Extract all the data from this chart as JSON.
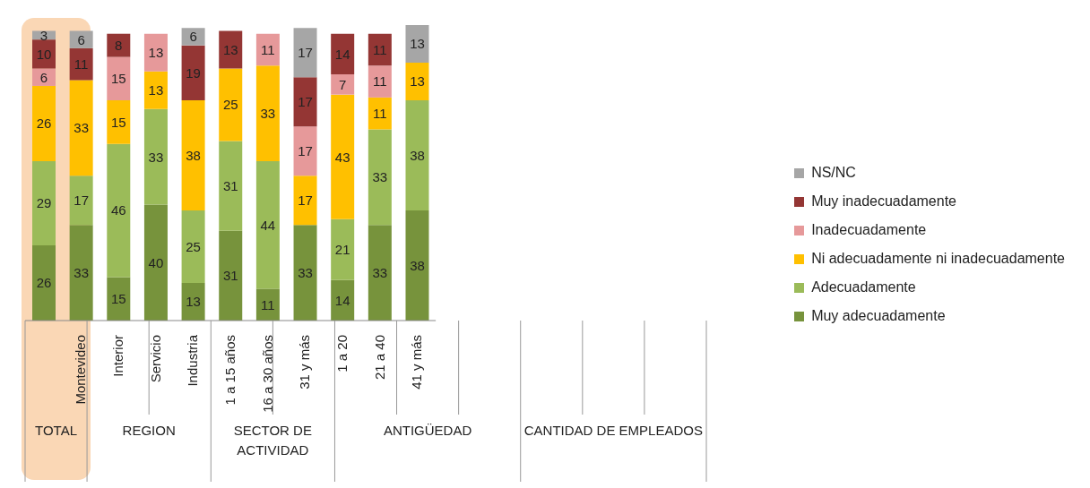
{
  "chart_data": {
    "type": "bar",
    "stacked": true,
    "data_labels": true,
    "legend": "right",
    "categories": [
      null,
      "Montevideo",
      "Interior",
      "Servicio",
      "Industria",
      "1 a 15 años",
      "16 a 30 años",
      "31 y más",
      "1 a 20",
      "21 a 40",
      "41 y más"
    ],
    "series": [
      {
        "name": "Muy adecuadamente",
        "color": "#77933c",
        "values": [
          26,
          33,
          15,
          40,
          13,
          31,
          11,
          33,
          14,
          33,
          38
        ]
      },
      {
        "name": "Adecuadamente",
        "color": "#9bbb59",
        "values": [
          29,
          17,
          46,
          33,
          25,
          31,
          44,
          null,
          21,
          33,
          38
        ]
      },
      {
        "name": "Ni adecuadamente ni inadecuadamente",
        "color": "#ffc000",
        "values": [
          26,
          33,
          15,
          13,
          38,
          25,
          33,
          17,
          43,
          11,
          13
        ]
      },
      {
        "name": "Inadecuadamente",
        "color": "#e6999a",
        "values": [
          6,
          null,
          15,
          13,
          null,
          null,
          11,
          17,
          7,
          11,
          null
        ]
      },
      {
        "name": "Muy inadecuadamente",
        "color": "#943634",
        "values": [
          10,
          11,
          8,
          null,
          19,
          13,
          null,
          17,
          14,
          11,
          null
        ]
      },
      {
        "name": "NS/NC",
        "color": "#a6a6a6",
        "values": [
          3,
          6,
          null,
          null,
          6,
          null,
          null,
          17,
          null,
          null,
          13
        ]
      }
    ],
    "annotations": [
      "TOTAL",
      "REGION",
      "SECTOR DE ACTIVIDAD",
      "ANTIGÜEDAD",
      "CANTIDAD DE EMPLEADOS"
    ]
  }
}
